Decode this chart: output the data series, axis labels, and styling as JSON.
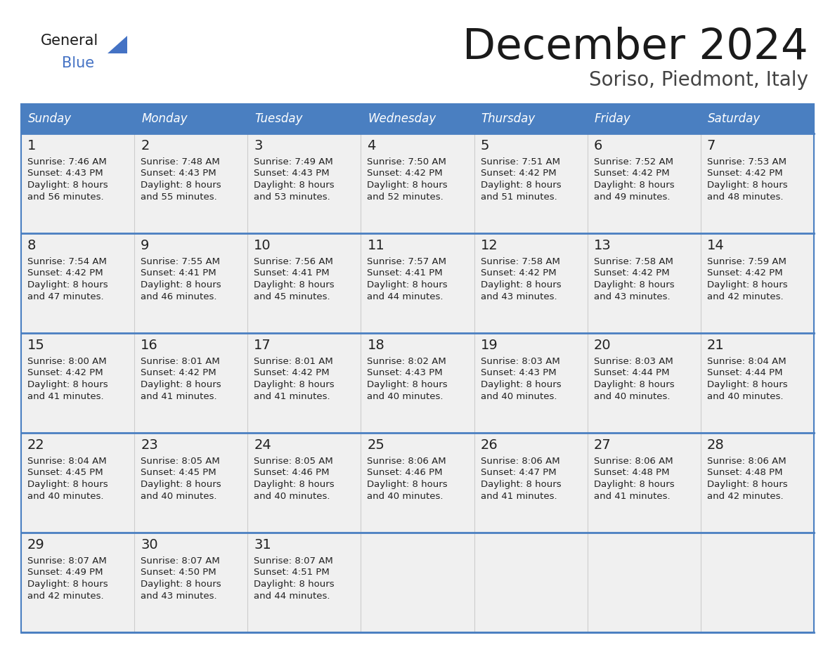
{
  "title": "December 2024",
  "subtitle": "Soriso, Piedmont, Italy",
  "days_of_week": [
    "Sunday",
    "Monday",
    "Tuesday",
    "Wednesday",
    "Thursday",
    "Friday",
    "Saturday"
  ],
  "header_bg": "#4a7fc1",
  "header_text": "#FFFFFF",
  "cell_bg": "#f0f0f0",
  "day_number_color": "#222222",
  "text_color": "#222222",
  "line_color": "#4a7fc1",
  "calendar": [
    [
      {
        "day": "1",
        "sunrise": "7:46 AM",
        "sunset": "4:43 PM",
        "daylight": "8 hours",
        "daylight2": "and 56 minutes."
      },
      {
        "day": "2",
        "sunrise": "7:48 AM",
        "sunset": "4:43 PM",
        "daylight": "8 hours",
        "daylight2": "and 55 minutes."
      },
      {
        "day": "3",
        "sunrise": "7:49 AM",
        "sunset": "4:43 PM",
        "daylight": "8 hours",
        "daylight2": "and 53 minutes."
      },
      {
        "day": "4",
        "sunrise": "7:50 AM",
        "sunset": "4:42 PM",
        "daylight": "8 hours",
        "daylight2": "and 52 minutes."
      },
      {
        "day": "5",
        "sunrise": "7:51 AM",
        "sunset": "4:42 PM",
        "daylight": "8 hours",
        "daylight2": "and 51 minutes."
      },
      {
        "day": "6",
        "sunrise": "7:52 AM",
        "sunset": "4:42 PM",
        "daylight": "8 hours",
        "daylight2": "and 49 minutes."
      },
      {
        "day": "7",
        "sunrise": "7:53 AM",
        "sunset": "4:42 PM",
        "daylight": "8 hours",
        "daylight2": "and 48 minutes."
      }
    ],
    [
      {
        "day": "8",
        "sunrise": "7:54 AM",
        "sunset": "4:42 PM",
        "daylight": "8 hours",
        "daylight2": "and 47 minutes."
      },
      {
        "day": "9",
        "sunrise": "7:55 AM",
        "sunset": "4:41 PM",
        "daylight": "8 hours",
        "daylight2": "and 46 minutes."
      },
      {
        "day": "10",
        "sunrise": "7:56 AM",
        "sunset": "4:41 PM",
        "daylight": "8 hours",
        "daylight2": "and 45 minutes."
      },
      {
        "day": "11",
        "sunrise": "7:57 AM",
        "sunset": "4:41 PM",
        "daylight": "8 hours",
        "daylight2": "and 44 minutes."
      },
      {
        "day": "12",
        "sunrise": "7:58 AM",
        "sunset": "4:42 PM",
        "daylight": "8 hours",
        "daylight2": "and 43 minutes."
      },
      {
        "day": "13",
        "sunrise": "7:58 AM",
        "sunset": "4:42 PM",
        "daylight": "8 hours",
        "daylight2": "and 43 minutes."
      },
      {
        "day": "14",
        "sunrise": "7:59 AM",
        "sunset": "4:42 PM",
        "daylight": "8 hours",
        "daylight2": "and 42 minutes."
      }
    ],
    [
      {
        "day": "15",
        "sunrise": "8:00 AM",
        "sunset": "4:42 PM",
        "daylight": "8 hours",
        "daylight2": "and 41 minutes."
      },
      {
        "day": "16",
        "sunrise": "8:01 AM",
        "sunset": "4:42 PM",
        "daylight": "8 hours",
        "daylight2": "and 41 minutes."
      },
      {
        "day": "17",
        "sunrise": "8:01 AM",
        "sunset": "4:42 PM",
        "daylight": "8 hours",
        "daylight2": "and 41 minutes."
      },
      {
        "day": "18",
        "sunrise": "8:02 AM",
        "sunset": "4:43 PM",
        "daylight": "8 hours",
        "daylight2": "and 40 minutes."
      },
      {
        "day": "19",
        "sunrise": "8:03 AM",
        "sunset": "4:43 PM",
        "daylight": "8 hours",
        "daylight2": "and 40 minutes."
      },
      {
        "day": "20",
        "sunrise": "8:03 AM",
        "sunset": "4:44 PM",
        "daylight": "8 hours",
        "daylight2": "and 40 minutes."
      },
      {
        "day": "21",
        "sunrise": "8:04 AM",
        "sunset": "4:44 PM",
        "daylight": "8 hours",
        "daylight2": "and 40 minutes."
      }
    ],
    [
      {
        "day": "22",
        "sunrise": "8:04 AM",
        "sunset": "4:45 PM",
        "daylight": "8 hours",
        "daylight2": "and 40 minutes."
      },
      {
        "day": "23",
        "sunrise": "8:05 AM",
        "sunset": "4:45 PM",
        "daylight": "8 hours",
        "daylight2": "and 40 minutes."
      },
      {
        "day": "24",
        "sunrise": "8:05 AM",
        "sunset": "4:46 PM",
        "daylight": "8 hours",
        "daylight2": "and 40 minutes."
      },
      {
        "day": "25",
        "sunrise": "8:06 AM",
        "sunset": "4:46 PM",
        "daylight": "8 hours",
        "daylight2": "and 40 minutes."
      },
      {
        "day": "26",
        "sunrise": "8:06 AM",
        "sunset": "4:47 PM",
        "daylight": "8 hours",
        "daylight2": "and 41 minutes."
      },
      {
        "day": "27",
        "sunrise": "8:06 AM",
        "sunset": "4:48 PM",
        "daylight": "8 hours",
        "daylight2": "and 41 minutes."
      },
      {
        "day": "28",
        "sunrise": "8:06 AM",
        "sunset": "4:48 PM",
        "daylight": "8 hours",
        "daylight2": "and 42 minutes."
      }
    ],
    [
      {
        "day": "29",
        "sunrise": "8:07 AM",
        "sunset": "4:49 PM",
        "daylight": "8 hours",
        "daylight2": "and 42 minutes."
      },
      {
        "day": "30",
        "sunrise": "8:07 AM",
        "sunset": "4:50 PM",
        "daylight": "8 hours",
        "daylight2": "and 43 minutes."
      },
      {
        "day": "31",
        "sunrise": "8:07 AM",
        "sunset": "4:51 PM",
        "daylight": "8 hours",
        "daylight2": "and 44 minutes."
      },
      null,
      null,
      null,
      null
    ]
  ]
}
